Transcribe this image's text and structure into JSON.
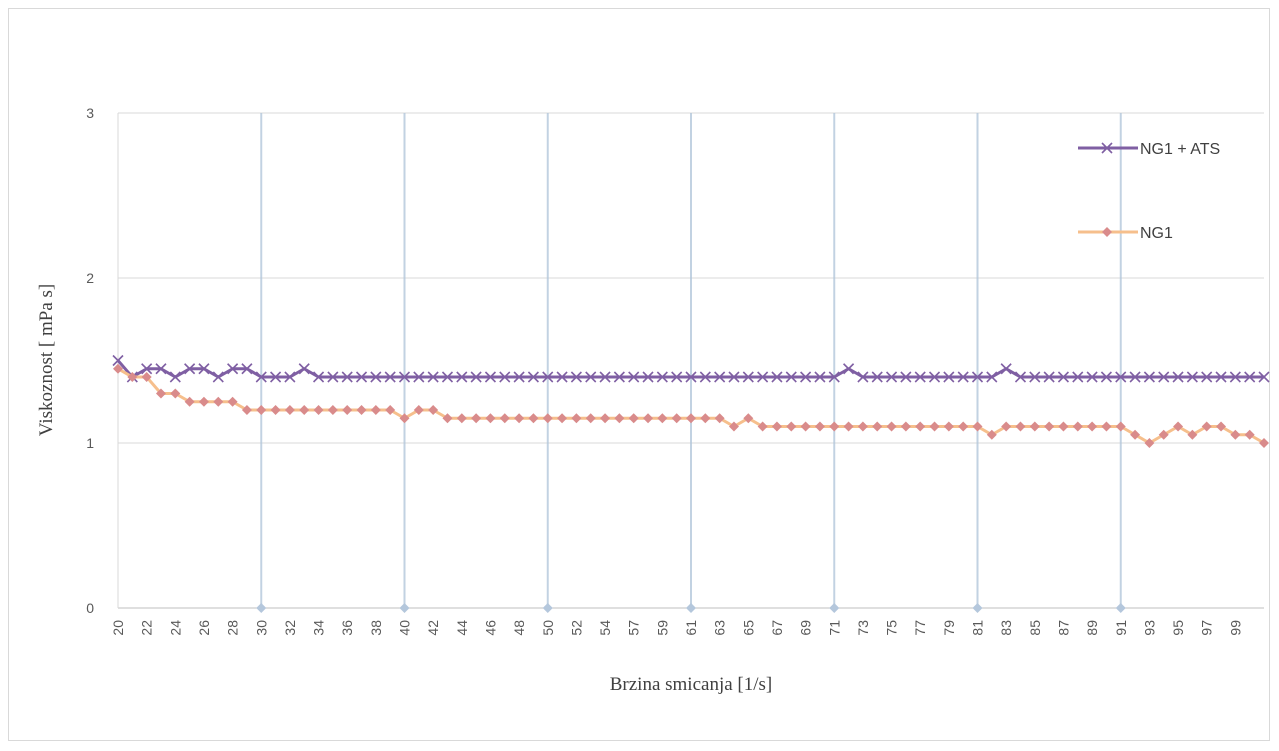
{
  "chart_data": {
    "type": "line",
    "title": "",
    "xlabel": "Brzina smicanja [1/s]",
    "ylabel": "Viskoznost  [ mPa s]",
    "ylim": [
      0,
      3
    ],
    "yticks": [
      0,
      1,
      2,
      3
    ],
    "grid": "horizontal",
    "legend_position": "right",
    "x": [
      20,
      21,
      22,
      23,
      24,
      25,
      26,
      27,
      28,
      29,
      30,
      31,
      32,
      33,
      34,
      35,
      36,
      37,
      38,
      39,
      40,
      41,
      42,
      43,
      44,
      45,
      46,
      47,
      48,
      49,
      50,
      51,
      52,
      53,
      54,
      55,
      56,
      57,
      58,
      59,
      60,
      61,
      62,
      63,
      64,
      65,
      66,
      67,
      68,
      69,
      70,
      71,
      72,
      73,
      74,
      75,
      76,
      77,
      78,
      79,
      80,
      81,
      82,
      83,
      84,
      85,
      86,
      87,
      88,
      89,
      90,
      91,
      92,
      93,
      94,
      95,
      96,
      97,
      98,
      99,
      100
    ],
    "xtick_labels": [
      "20",
      "22",
      "24",
      "26",
      "28",
      "30",
      "32",
      "34",
      "36",
      "38",
      "40",
      "42",
      "44",
      "46",
      "48",
      "50",
      "52",
      "54",
      "57",
      "59",
      "61",
      "63",
      "65",
      "67",
      "69",
      "71",
      "73",
      "75",
      "77",
      "79",
      "81",
      "83",
      "85",
      "87",
      "89",
      "91",
      "93",
      "95",
      "97",
      "99"
    ],
    "series": [
      {
        "name": "NG1 + ATS",
        "color": "#7f5fa3",
        "marker": "x",
        "values": [
          1.5,
          1.4,
          1.45,
          1.45,
          1.4,
          1.45,
          1.45,
          1.4,
          1.45,
          1.45,
          1.4,
          1.4,
          1.4,
          1.45,
          1.4,
          1.4,
          1.4,
          1.4,
          1.4,
          1.4,
          1.4,
          1.4,
          1.4,
          1.4,
          1.4,
          1.4,
          1.4,
          1.4,
          1.4,
          1.4,
          1.4,
          1.4,
          1.4,
          1.4,
          1.4,
          1.4,
          1.4,
          1.4,
          1.4,
          1.4,
          1.4,
          1.4,
          1.4,
          1.4,
          1.4,
          1.4,
          1.4,
          1.4,
          1.4,
          1.4,
          1.4,
          1.45,
          1.4,
          1.4,
          1.4,
          1.4,
          1.4,
          1.4,
          1.4,
          1.4,
          1.4,
          1.4,
          1.45,
          1.4,
          1.4,
          1.4,
          1.4,
          1.4,
          1.4,
          1.4,
          1.4,
          1.4,
          1.4,
          1.4,
          1.4,
          1.4,
          1.4,
          1.4,
          1.4,
          1.4,
          1.4
        ]
      },
      {
        "name": "NG1",
        "color": "#f6bf8c",
        "marker_color": "#d98b8b",
        "marker": "diamond",
        "values": [
          1.45,
          1.4,
          1.4,
          1.3,
          1.3,
          1.25,
          1.25,
          1.25,
          1.25,
          1.2,
          1.2,
          1.2,
          1.2,
          1.2,
          1.2,
          1.2,
          1.2,
          1.2,
          1.2,
          1.2,
          1.15,
          1.2,
          1.2,
          1.15,
          1.15,
          1.15,
          1.15,
          1.15,
          1.15,
          1.15,
          1.15,
          1.15,
          1.15,
          1.15,
          1.15,
          1.15,
          1.15,
          1.15,
          1.15,
          1.15,
          1.15,
          1.15,
          1.15,
          1.1,
          1.15,
          1.1,
          1.1,
          1.1,
          1.1,
          1.1,
          1.1,
          1.1,
          1.1,
          1.1,
          1.1,
          1.1,
          1.1,
          1.1,
          1.1,
          1.1,
          1.1,
          1.05,
          1.1,
          1.1,
          1.1,
          1.1,
          1.1,
          1.1,
          1.1,
          1.1,
          1.1,
          1.05,
          1.0,
          1.05,
          1.1,
          1.05,
          1.1,
          1.1,
          1.05,
          1.05,
          1.0
        ]
      },
      {
        "name": "",
        "color": "#b4c7dc",
        "marker": "diamond",
        "style": "drop-lines",
        "x": [
          30,
          40,
          50,
          60,
          70,
          80,
          90
        ],
        "values": [
          0,
          0,
          0,
          0,
          0,
          0,
          0
        ]
      }
    ]
  }
}
